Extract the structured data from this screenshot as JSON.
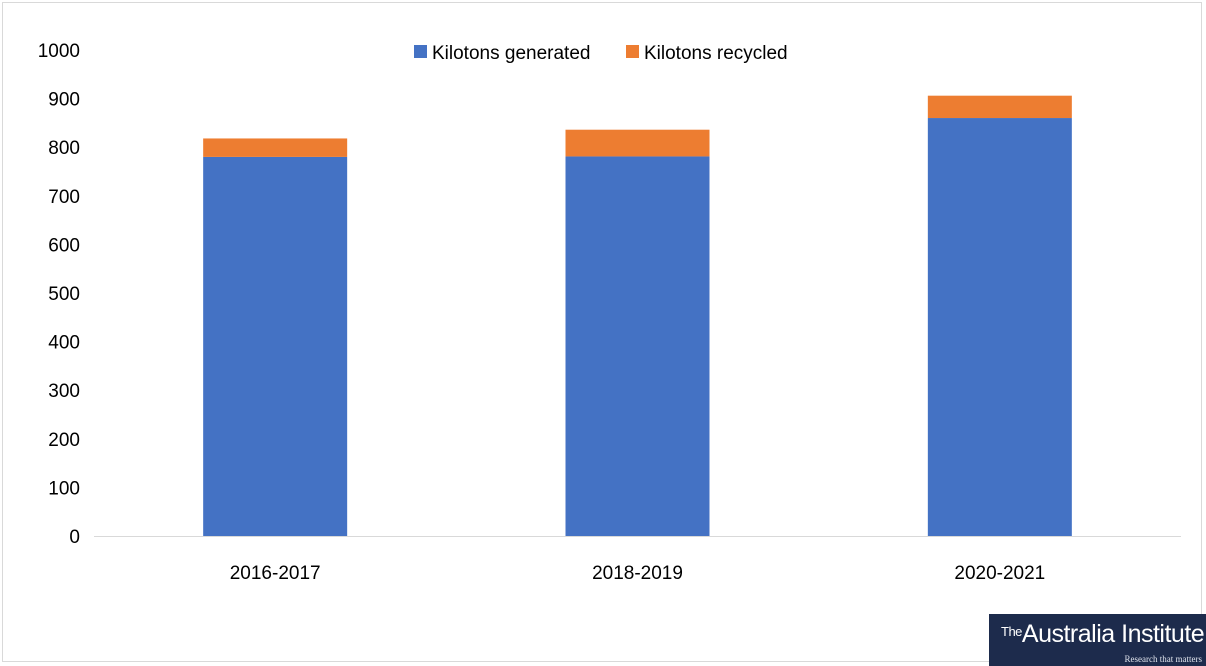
{
  "chart_data": {
    "type": "bar",
    "stacked": true,
    "categories": [
      "2016-2017",
      "2018-2019",
      "2020-2021"
    ],
    "series": [
      {
        "name": "Kilotons generated",
        "values": [
          780,
          781,
          860
        ],
        "color": "#4472c4"
      },
      {
        "name": "Kilotons recycled",
        "values": [
          38,
          55,
          46
        ],
        "color": "#ed7d31"
      }
    ],
    "title": "",
    "xlabel": "",
    "ylabel": "",
    "ylim": [
      0,
      1000
    ],
    "yticks": [
      "0",
      "100",
      "200",
      "300",
      "400",
      "500",
      "600",
      "700",
      "800",
      "900",
      "1000"
    ],
    "grid": false,
    "legend_position": "top-center"
  },
  "logo": {
    "brand_text": "The Australia Institute",
    "tagline_text": "Research that matters"
  }
}
